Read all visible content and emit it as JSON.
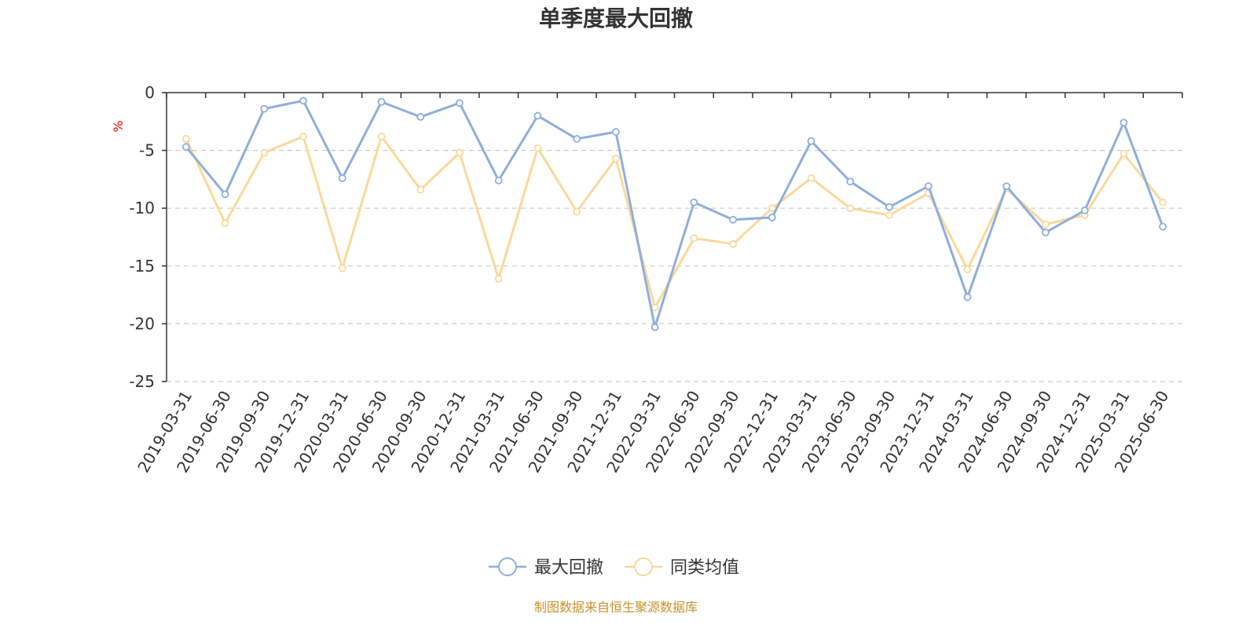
{
  "chart_data": {
    "type": "line",
    "title": "单季度最大回撤",
    "ylabel": "%",
    "ylim": [
      -25,
      0
    ],
    "yticks": [
      "0",
      "-5",
      "-10",
      "-15",
      "-20",
      "-25"
    ],
    "grid": true,
    "legend_position": "bottom-center",
    "source": "制图数据来自恒生聚源数据库",
    "categories": [
      "2019-03-31",
      "2019-06-30",
      "2019-09-30",
      "2019-12-31",
      "2020-03-31",
      "2020-06-30",
      "2020-09-30",
      "2020-12-31",
      "2021-03-31",
      "2021-06-30",
      "2021-09-30",
      "2021-12-31",
      "2022-03-31",
      "2022-06-30",
      "2022-09-30",
      "2022-12-31",
      "2023-03-31",
      "2023-06-30",
      "2023-09-30",
      "2023-12-31",
      "2024-03-31",
      "2024-06-30",
      "2024-09-30",
      "2024-12-31",
      "2025-03-31",
      "2025-06-30"
    ],
    "series": [
      {
        "name": "最大回撤",
        "color": "#8eaedc",
        "values": [
          -4.7,
          -8.8,
          -1.4,
          -0.7,
          -7.4,
          -0.8,
          -2.1,
          -0.9,
          -7.6,
          -2.0,
          -4.0,
          -3.4,
          -20.3,
          -9.5,
          -11.0,
          -10.8,
          -4.2,
          -7.7,
          -9.9,
          -8.1,
          -17.7,
          -8.1,
          -12.1,
          -10.2,
          -2.6,
          -11.6
        ]
      },
      {
        "name": "同类均值",
        "color": "#fbd89a",
        "values": [
          -4.0,
          -11.3,
          -5.2,
          -3.8,
          -15.2,
          -3.8,
          -8.4,
          -5.2,
          -16.1,
          -4.8,
          -10.3,
          -5.7,
          -18.6,
          -12.6,
          -13.1,
          -10.0,
          -7.4,
          -10.0,
          -10.6,
          -8.7,
          -15.3,
          -8.3,
          -11.4,
          -10.6,
          -5.3,
          -9.5
        ]
      }
    ]
  },
  "colors": {
    "text": "#333333",
    "grid": "#cccccc",
    "unit": "#ff0000",
    "source": "#c7922b"
  }
}
